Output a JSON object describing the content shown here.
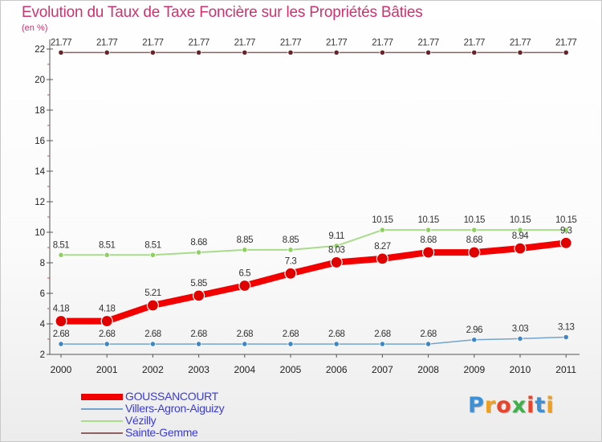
{
  "title": "Evolution du Taux de Taxe Foncière sur les Propriétés Bâties",
  "unit": "(en %)",
  "logo": {
    "letters": [
      "P",
      "r",
      "o",
      "x",
      "i",
      "t",
      "i"
    ],
    "colors": [
      "#3d8fd6",
      "#f0a020",
      "#e8442c",
      "#3db04a",
      "#e8442c",
      "#3d8fd6",
      "#f0a020"
    ]
  },
  "chart_data": {
    "type": "line",
    "title": "Evolution du Taux de Taxe Foncière sur les Propriétés Bâties",
    "ylabel": "(en %)",
    "xlabel": "",
    "x": [
      "2000",
      "2001",
      "2002",
      "2003",
      "2004",
      "2005",
      "2006",
      "2007",
      "2008",
      "2009",
      "2010",
      "2011"
    ],
    "ylim": [
      2,
      22
    ],
    "yticks": [
      "2",
      "4",
      "6",
      "8",
      "10",
      "12",
      "14",
      "16",
      "18",
      "20",
      "22"
    ],
    "series": [
      {
        "name": "GOUSSANCOURT",
        "values": [
          4.18,
          4.18,
          5.21,
          5.85,
          6.5,
          7.3,
          8.03,
          8.27,
          8.68,
          8.68,
          8.94,
          9.3
        ],
        "labels": [
          "4.18",
          "4.18",
          "5.21",
          "5.85",
          "6.5",
          "7.3",
          "8.03",
          "8.27",
          "8.68",
          "8.68",
          "8.94",
          "9.3"
        ],
        "color": "#f20000",
        "marker": "#e00000"
      },
      {
        "name": "Villers-Agron-Aiguizy",
        "values": [
          2.68,
          2.68,
          2.68,
          2.68,
          2.68,
          2.68,
          2.68,
          2.68,
          2.68,
          2.96,
          3.03,
          3.13
        ],
        "labels": [
          "2.68",
          "2.68",
          "2.68",
          "2.68",
          "2.68",
          "2.68",
          "2.68",
          "2.68",
          "2.68",
          "2.96",
          "3.03",
          "3.13"
        ],
        "color": "#74a4cc",
        "marker": "#3f86c4"
      },
      {
        "name": "Vézilly",
        "values": [
          8.51,
          8.51,
          8.51,
          8.68,
          8.85,
          8.85,
          9.11,
          10.15,
          10.15,
          10.15,
          10.15,
          10.15
        ],
        "labels": [
          "8.51",
          "8.51",
          "8.51",
          "8.68",
          "8.85",
          "8.85",
          "9.11",
          "10.15",
          "10.15",
          "10.15",
          "10.15",
          "10.15"
        ],
        "color": "#a8dc8a",
        "marker": "#8ed062"
      },
      {
        "name": "Sainte-Gemme",
        "values": [
          21.77,
          21.77,
          21.77,
          21.77,
          21.77,
          21.77,
          21.77,
          21.77,
          21.77,
          21.77,
          21.77,
          21.77
        ],
        "labels": [
          "21.77",
          "21.77",
          "21.77",
          "21.77",
          "21.77",
          "21.77",
          "21.77",
          "21.77",
          "21.77",
          "21.77",
          "21.77",
          "21.77"
        ],
        "color": "#906060",
        "marker": "#6a2328"
      }
    ],
    "legend": "bottom-left",
    "grid": false
  }
}
